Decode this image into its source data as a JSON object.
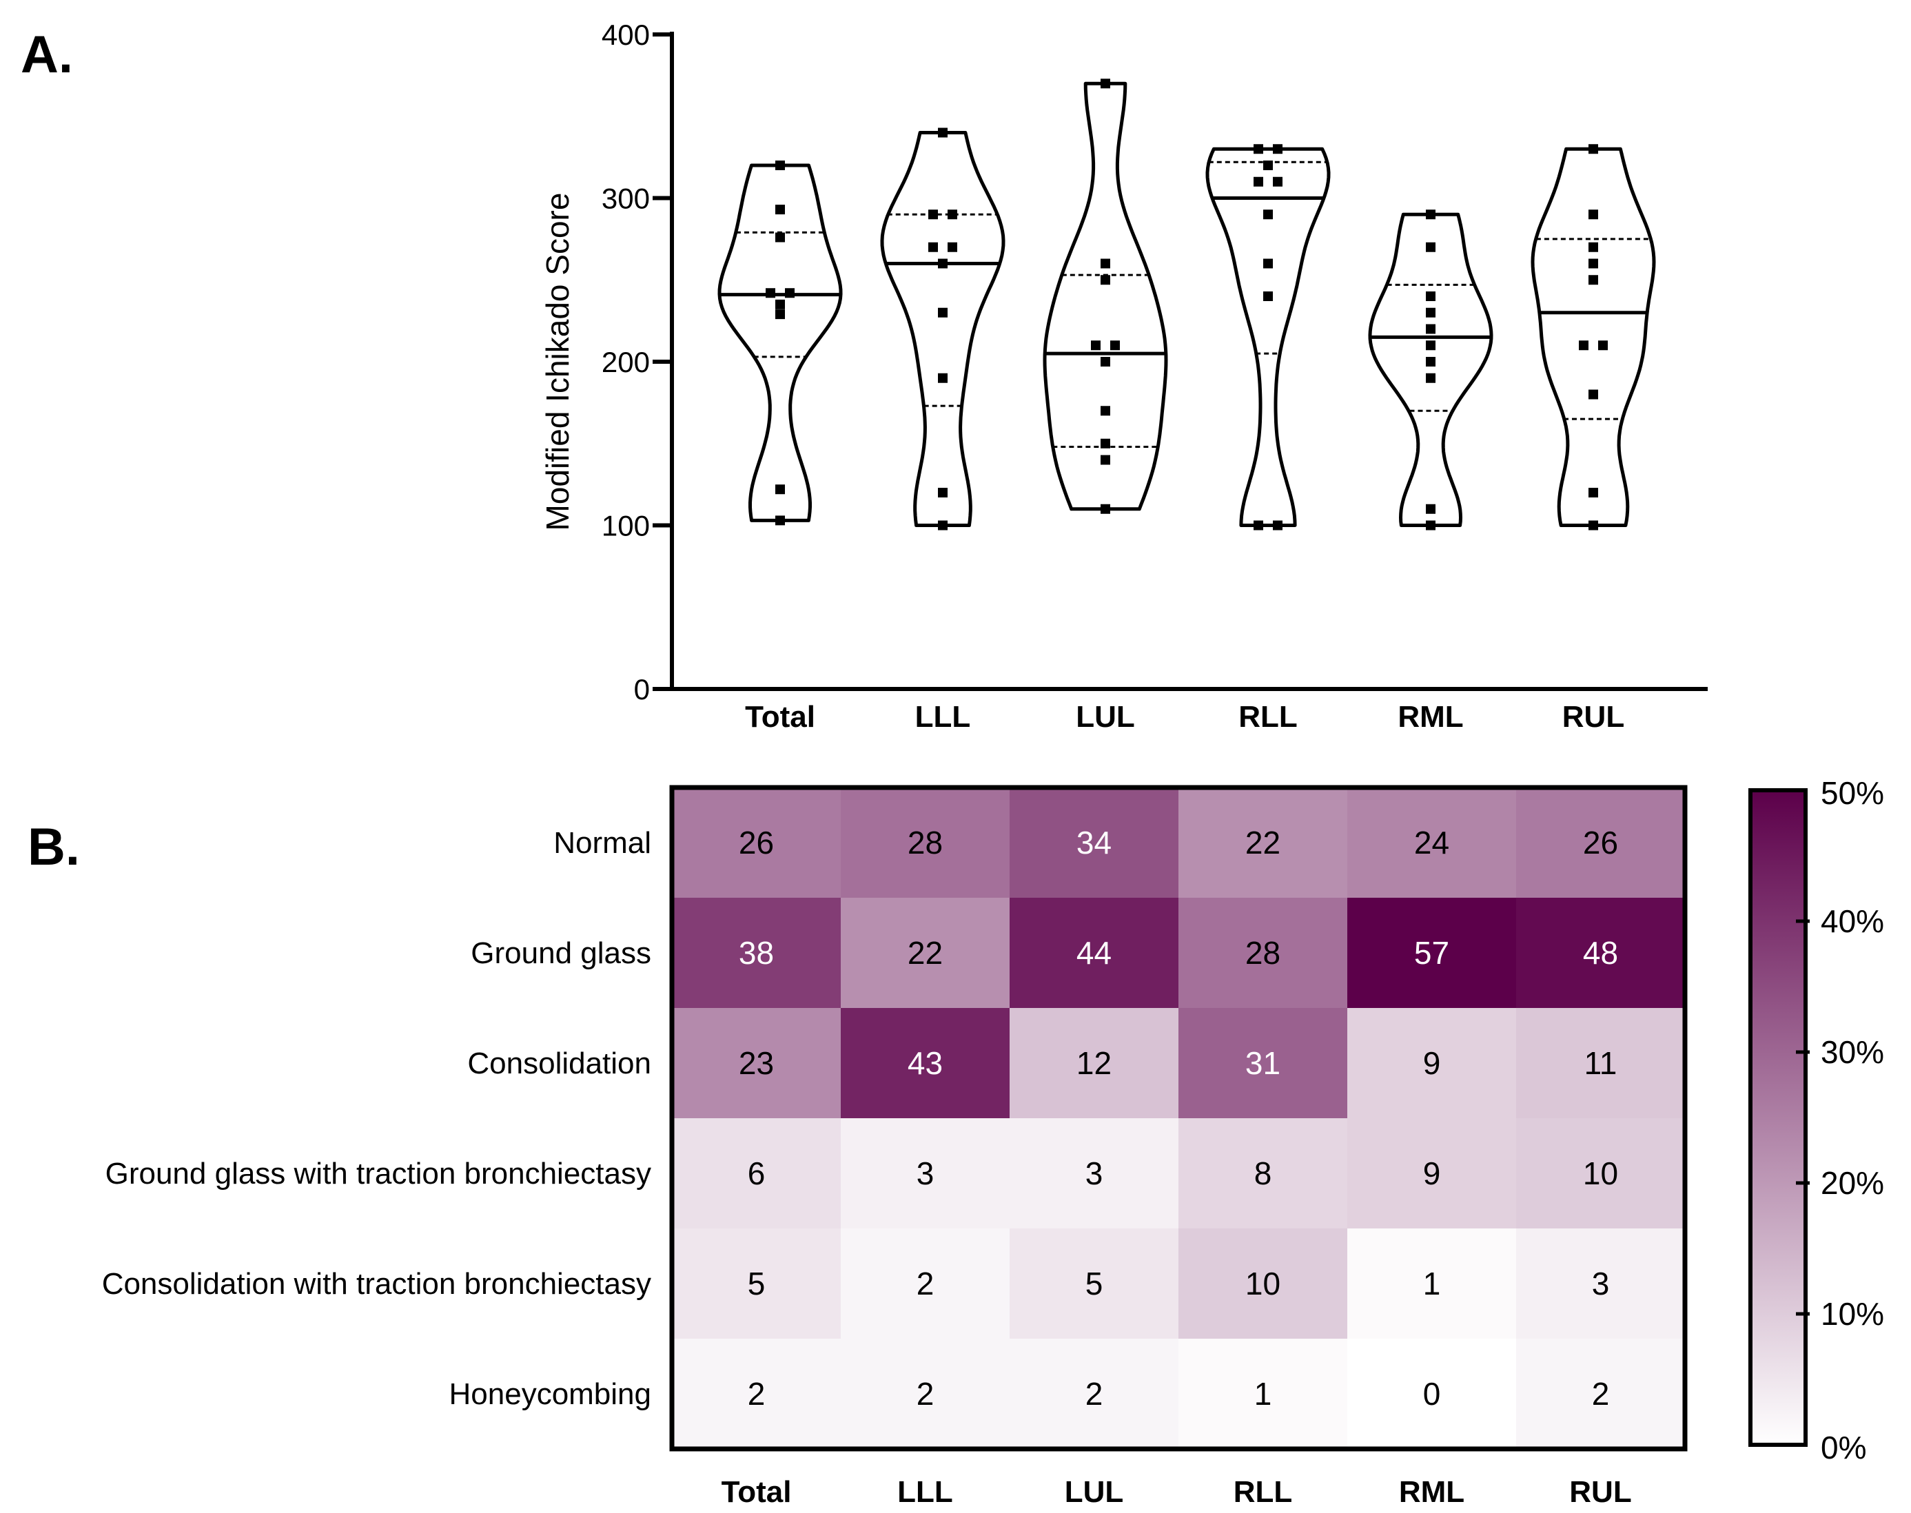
{
  "panel_labels": {
    "a": "A.",
    "b": "B."
  },
  "chart_data": [
    {
      "type": "violin",
      "title": "",
      "ylabel": "Modified Ichikado Score",
      "ylim": [
        0,
        400
      ],
      "yticks": [
        "0",
        "100",
        "200",
        "300",
        "400"
      ],
      "categories": [
        "Total",
        "LLL",
        "LUL",
        "RLL",
        "RML",
        "RUL"
      ],
      "series": [
        {
          "name": "Total",
          "min": 103,
          "max": 320,
          "q1": 203,
          "median": 241,
          "q3": 279,
          "points": [
            320,
            293,
            276,
            242,
            242,
            235,
            229,
            122,
            103
          ]
        },
        {
          "name": "LLL",
          "min": 100,
          "max": 340,
          "q1": 173,
          "median": 260,
          "q3": 290,
          "points": [
            340,
            290,
            290,
            270,
            270,
            260,
            230,
            190,
            120,
            100
          ]
        },
        {
          "name": "LUL",
          "min": 110,
          "max": 370,
          "q1": 148,
          "median": 205,
          "q3": 253,
          "points": [
            370,
            260,
            250,
            210,
            210,
            200,
            170,
            150,
            140,
            110
          ]
        },
        {
          "name": "RLL",
          "min": 100,
          "max": 330,
          "q1": 205,
          "median": 300,
          "q3": 322,
          "points": [
            330,
            330,
            320,
            310,
            310,
            290,
            260,
            240,
            100,
            100
          ]
        },
        {
          "name": "RML",
          "min": 100,
          "max": 290,
          "q1": 170,
          "median": 215,
          "q3": 247,
          "points": [
            290,
            270,
            240,
            230,
            220,
            210,
            200,
            190,
            110,
            100
          ]
        },
        {
          "name": "RUL",
          "min": 100,
          "max": 330,
          "q1": 165,
          "median": 230,
          "q3": 275,
          "points": [
            330,
            290,
            270,
            260,
            250,
            210,
            210,
            180,
            120,
            100
          ]
        }
      ]
    },
    {
      "type": "heatmap",
      "title": "",
      "columns": [
        "Total",
        "LLL",
        "LUL",
        "RLL",
        "RML",
        "RUL"
      ],
      "rows": [
        "Normal",
        "Ground glass",
        "Consolidation",
        "Ground glass with traction bronchiectasy",
        "Consolidation with traction bronchiectasy",
        "Honeycombing"
      ],
      "values": [
        [
          26,
          28,
          34,
          22,
          24,
          26
        ],
        [
          38,
          22,
          44,
          28,
          57,
          48
        ],
        [
          23,
          43,
          12,
          31,
          9,
          11
        ],
        [
          6,
          3,
          3,
          8,
          9,
          10
        ],
        [
          5,
          2,
          5,
          10,
          1,
          3
        ],
        [
          2,
          2,
          2,
          1,
          0,
          2
        ]
      ],
      "colorbar": {
        "min": 0,
        "max": 50,
        "ticks": [
          "0%",
          "10%",
          "20%",
          "30%",
          "40%",
          "50%"
        ],
        "color_low": "#ffffff",
        "color_high": "#5c004a"
      }
    }
  ]
}
